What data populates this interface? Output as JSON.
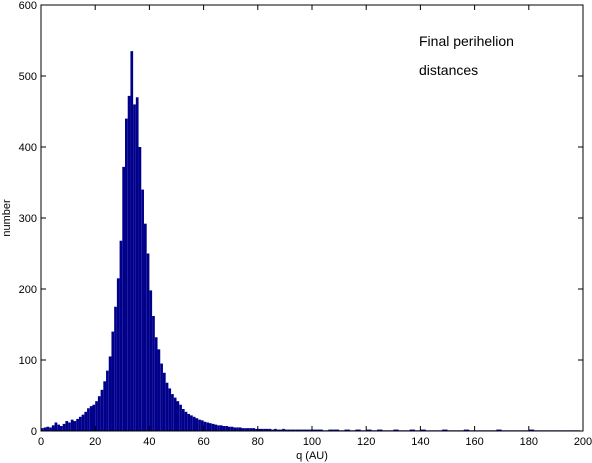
{
  "chart_data": {
    "type": "bar",
    "title": "",
    "xlabel": "q (AU)",
    "ylabel": "number",
    "xlim": [
      0,
      200
    ],
    "ylim": [
      0,
      600
    ],
    "xticks": [
      0,
      20,
      40,
      60,
      80,
      100,
      120,
      140,
      160,
      180,
      200
    ],
    "yticks": [
      0,
      100,
      200,
      300,
      400,
      500,
      600
    ],
    "bin_width": 1,
    "bar_color": "#00008b",
    "grid": false,
    "annotations": [
      "Final perihelion",
      "distances"
    ],
    "x": [
      0,
      1,
      2,
      3,
      4,
      5,
      6,
      7,
      8,
      9,
      10,
      11,
      12,
      13,
      14,
      15,
      16,
      17,
      18,
      19,
      20,
      21,
      22,
      23,
      24,
      25,
      26,
      27,
      28,
      29,
      30,
      31,
      32,
      33,
      34,
      35,
      36,
      37,
      38,
      39,
      40,
      41,
      42,
      43,
      44,
      45,
      46,
      47,
      48,
      49,
      50,
      51,
      52,
      53,
      54,
      55,
      56,
      57,
      58,
      59,
      60,
      61,
      62,
      63,
      64,
      65,
      66,
      67,
      68,
      69,
      70,
      71,
      72,
      73,
      74,
      75,
      76,
      77,
      78,
      79,
      80,
      81,
      82,
      83,
      84,
      85,
      86,
      87,
      88,
      89,
      90,
      91,
      92,
      93,
      94,
      95,
      96,
      97,
      98,
      99,
      100,
      102,
      104,
      106,
      108,
      110,
      112,
      114,
      116,
      118,
      120,
      122,
      124,
      126,
      128,
      130,
      132,
      134,
      136,
      138,
      140,
      142,
      144,
      146,
      148,
      150,
      152,
      154,
      156,
      158,
      160,
      162,
      164,
      166,
      168,
      170,
      172,
      174,
      176,
      178,
      180,
      182,
      184,
      186,
      188,
      190,
      192,
      194,
      196,
      198
    ],
    "values": [
      4,
      5,
      6,
      5,
      8,
      12,
      9,
      7,
      10,
      14,
      12,
      16,
      14,
      17,
      20,
      23,
      27,
      32,
      35,
      37,
      42,
      49,
      58,
      70,
      85,
      105,
      140,
      175,
      215,
      268,
      372,
      440,
      472,
      535,
      460,
      470,
      400,
      340,
      292,
      250,
      198,
      162,
      132,
      115,
      95,
      82,
      68,
      60,
      52,
      47,
      42,
      37,
      31,
      27,
      24,
      22,
      20,
      18,
      16,
      15,
      13,
      12,
      11,
      10,
      9,
      8,
      8,
      7,
      7,
      6,
      6,
      5,
      5,
      5,
      4,
      4,
      4,
      4,
      4,
      3,
      3,
      3,
      3,
      3,
      3,
      2,
      3,
      2,
      2,
      3,
      2,
      2,
      2,
      2,
      2,
      2,
      2,
      2,
      2,
      2,
      2,
      2,
      1,
      2,
      2,
      1,
      2,
      1,
      2,
      1,
      2,
      1,
      2,
      1,
      1,
      2,
      1,
      1,
      2,
      1,
      2,
      1,
      1,
      1,
      2,
      1,
      1,
      1,
      2,
      1,
      1,
      1,
      1,
      1,
      2,
      1,
      1,
      1,
      1,
      1,
      2,
      1,
      1,
      1,
      1,
      1,
      1,
      1,
      1,
      1
    ]
  }
}
